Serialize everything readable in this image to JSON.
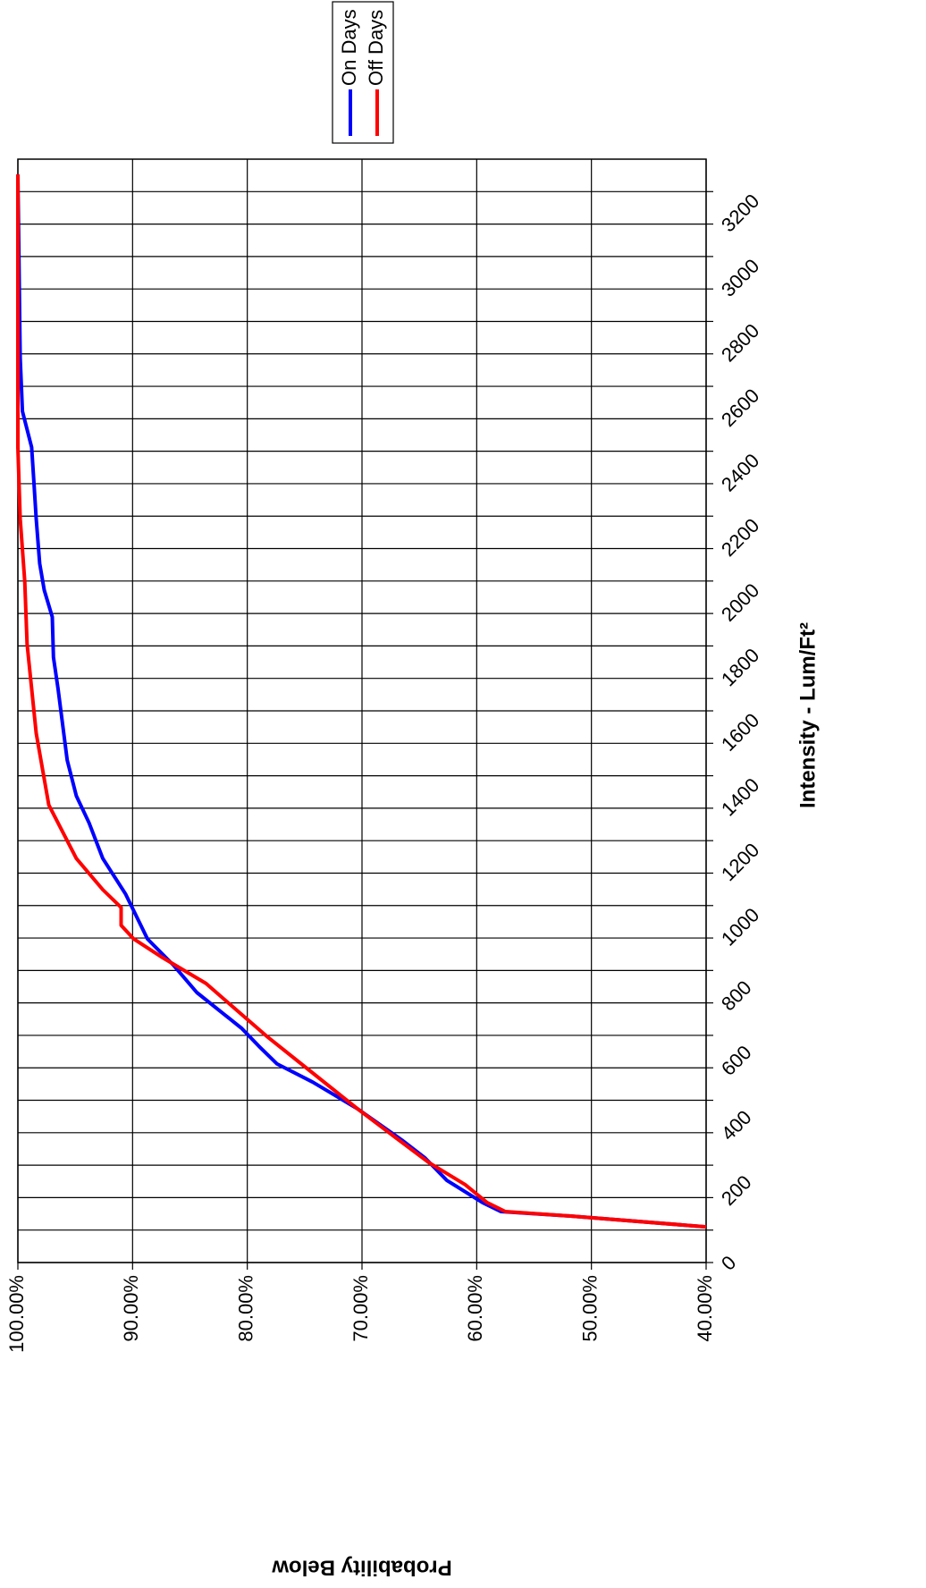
{
  "chart_data": {
    "type": "line",
    "x_label": "Intensity - Lum/Ft²",
    "y_label": "Probability Below",
    "xlim": [
      0,
      3400
    ],
    "xticks": [
      0,
      200,
      400,
      600,
      800,
      1000,
      1200,
      1400,
      1600,
      1800,
      2000,
      2200,
      2400,
      2600,
      2800,
      3000,
      3200
    ],
    "x_minor_ticks": [
      100,
      300,
      500,
      700,
      900,
      1100,
      1300,
      1500,
      1700,
      1900,
      2100,
      2300,
      2500,
      2700,
      2900,
      3100,
      3300
    ],
    "ylim": [
      40,
      100
    ],
    "yticks": [
      {
        "value": 40,
        "label": "40.00%"
      },
      {
        "value": 50,
        "label": "50.00%"
      },
      {
        "value": 60,
        "label": "60.00%"
      },
      {
        "value": 70,
        "label": "70.00%"
      },
      {
        "value": 80,
        "label": "80.00%"
      },
      {
        "value": 90,
        "label": "90.00%"
      },
      {
        "value": 100,
        "label": "100.00%"
      }
    ],
    "grid": true,
    "rotation": -90,
    "legend": "upper right",
    "series": [
      {
        "name": "On Days",
        "color": "#0000ff",
        "x": [
          110,
          143,
          157,
          185,
          253,
          322,
          377,
          474,
          556,
          612,
          667,
          722,
          832,
          915,
          997,
          1135,
          1245,
          1355,
          1438,
          1548,
          1769,
          1865,
          1989,
          2072,
          2154,
          2292,
          2402,
          2512,
          2623,
          2788,
          3353
        ],
        "values": [
          40.0,
          51.7,
          57.9,
          59.5,
          62.6,
          64.5,
          66.5,
          70.4,
          74.3,
          77.4,
          79.0,
          80.5,
          84.4,
          86.4,
          88.7,
          90.6,
          92.6,
          93.8,
          94.9,
          95.7,
          96.5,
          96.9,
          97.0,
          97.7,
          98.1,
          98.4,
          98.6,
          98.8,
          99.6,
          99.8,
          100
        ]
      },
      {
        "name": "Off Days",
        "color": "#ff0000",
        "x": [
          110,
          143,
          157,
          185,
          240,
          309,
          391,
          474,
          584,
          694,
          777,
          860,
          942,
          997,
          1039,
          1094,
          1149,
          1245,
          1410,
          1631,
          1906,
          2099,
          2292,
          2512,
          3353
        ],
        "values": [
          40.0,
          51.7,
          57.5,
          59.1,
          61.0,
          64.2,
          67.3,
          70.4,
          74.3,
          78.2,
          80.9,
          83.6,
          87.5,
          89.9,
          91.0,
          91.0,
          92.6,
          94.9,
          97.3,
          98.4,
          99.2,
          99.4,
          99.8,
          100,
          100
        ]
      }
    ]
  }
}
